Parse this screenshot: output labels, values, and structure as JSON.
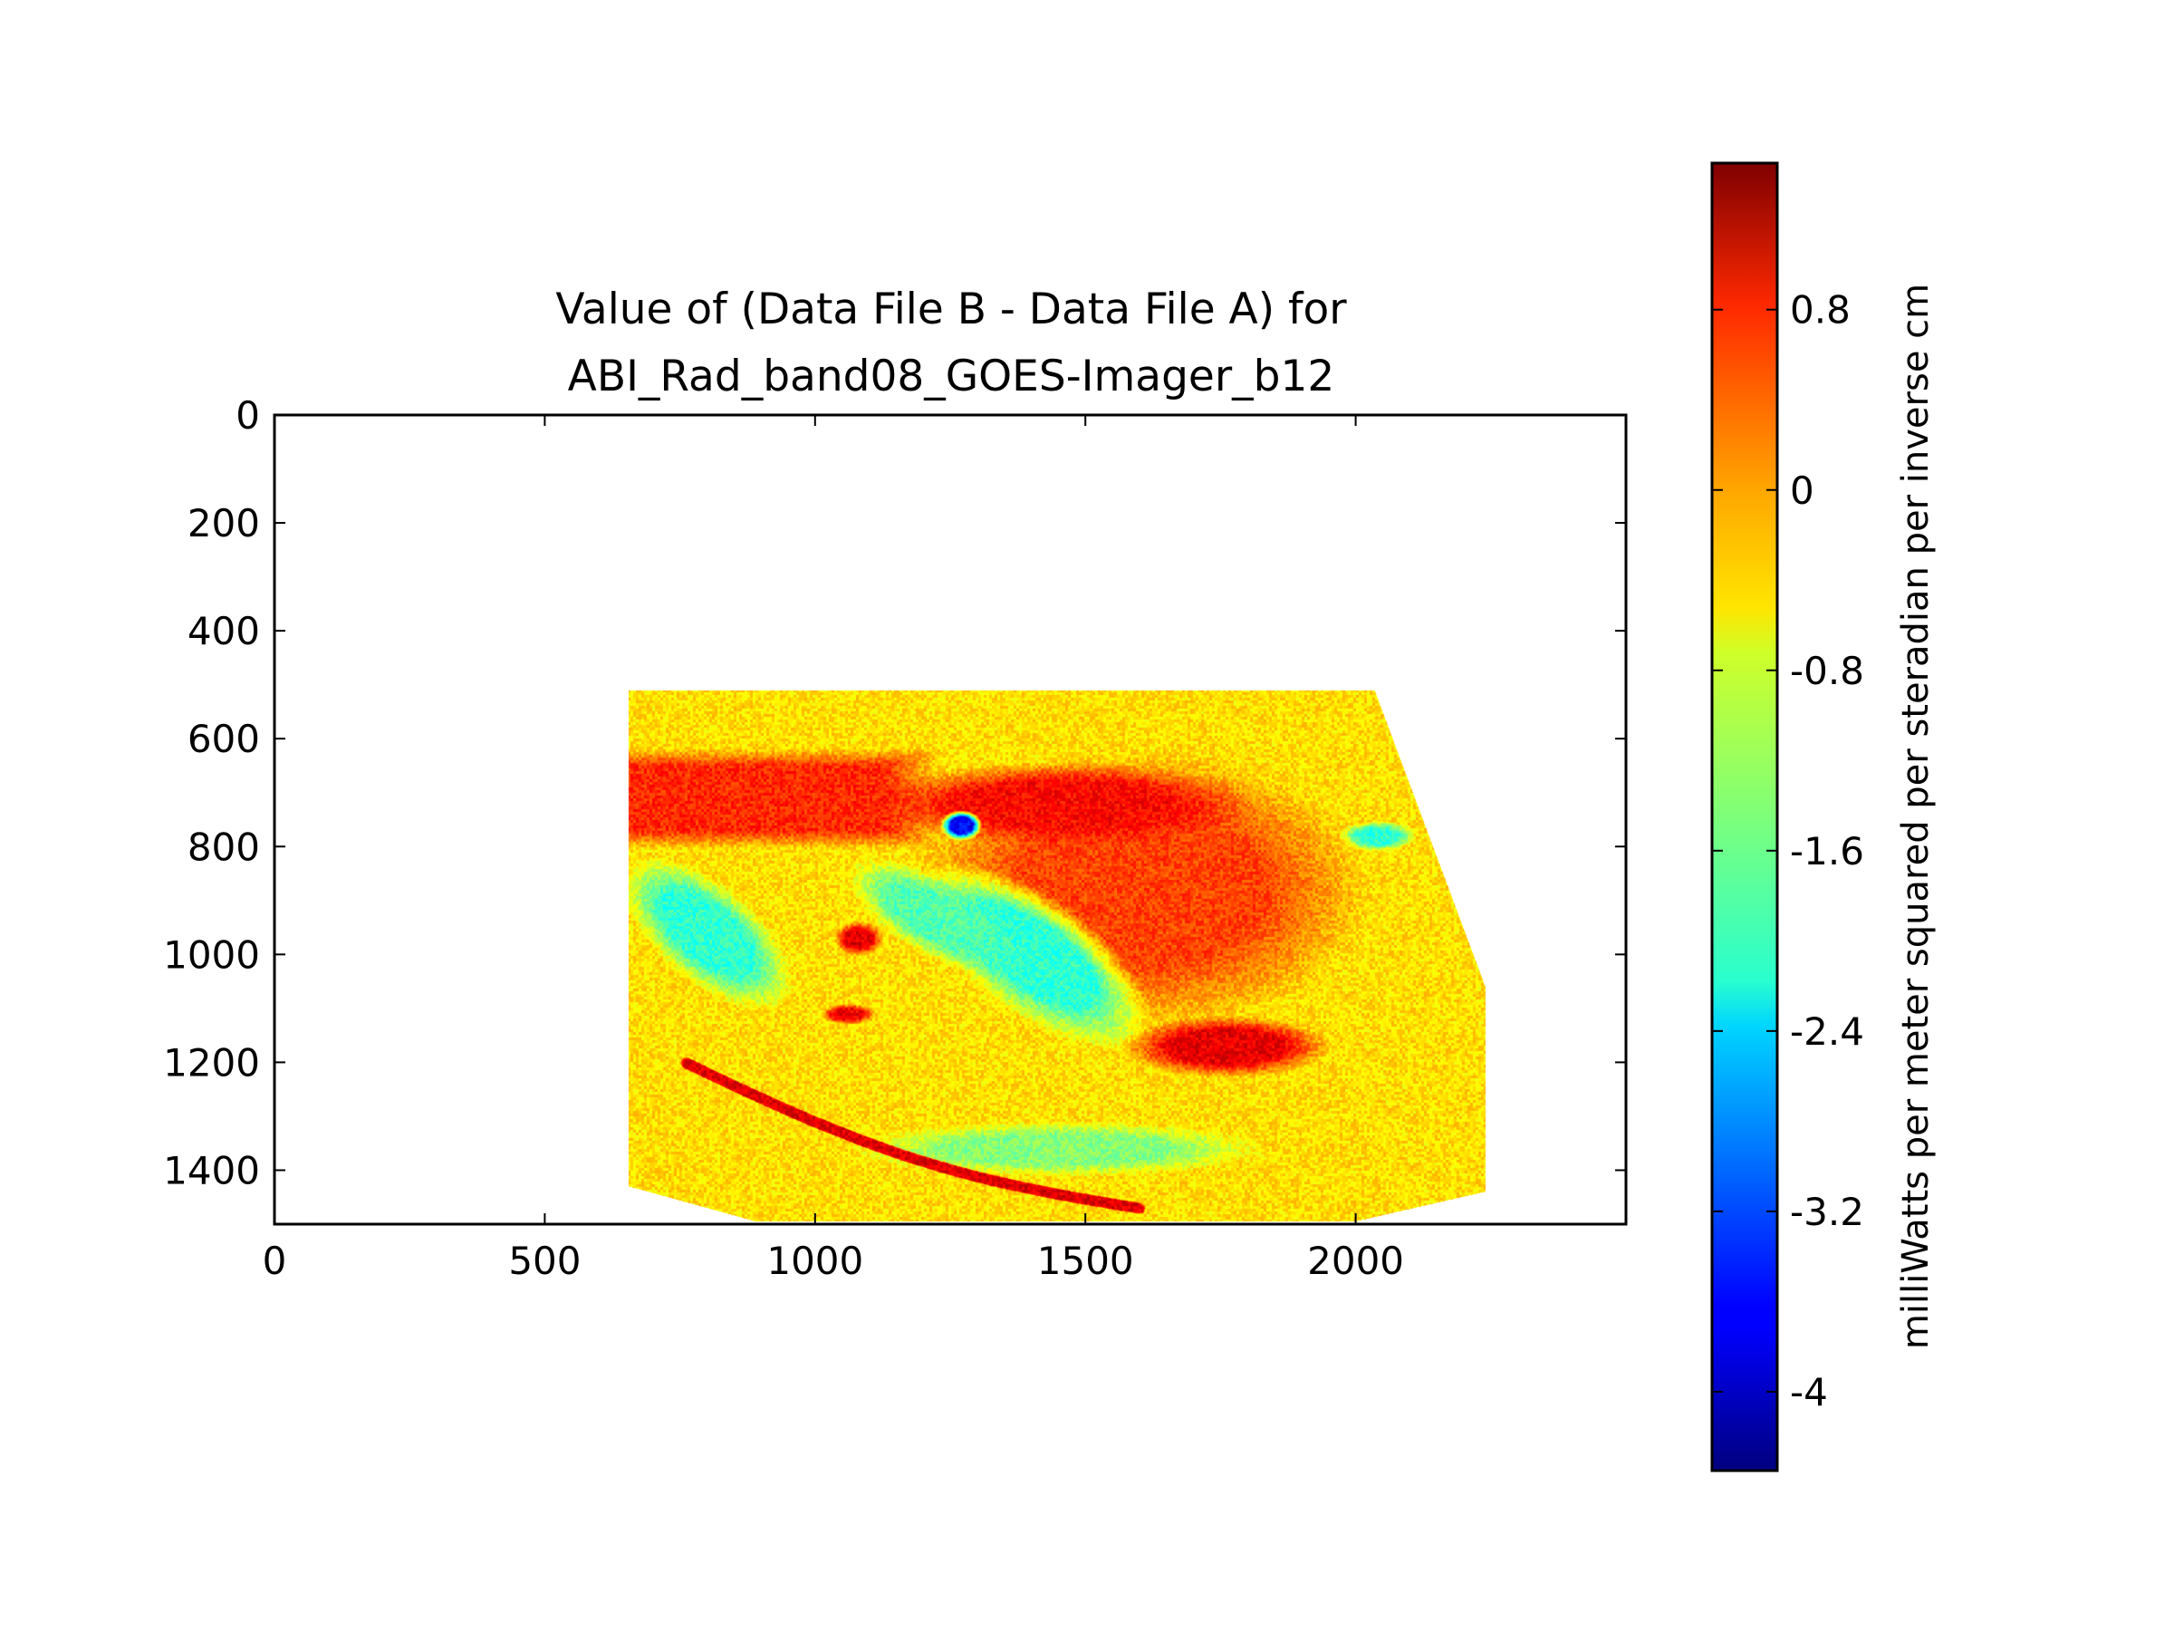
{
  "chart_data": {
    "type": "heatmap",
    "title_line1": "Value of (Data File B - Data File A) for",
    "title_line2": "ABI_Rad_band08_GOES-Imager_b12",
    "xlabel": "",
    "ylabel": "",
    "xlim": [
      0,
      2500
    ],
    "ylim": [
      1500,
      0
    ],
    "x_ticks": [
      0,
      500,
      1000,
      1500,
      2000
    ],
    "y_ticks": [
      0,
      200,
      400,
      600,
      800,
      1000,
      1200,
      1400
    ],
    "grid": false,
    "colormap": "jet",
    "colorbar": {
      "label": "milliWatts per meter squared per steradian per inverse cm",
      "range": [
        -4.35,
        1.45
      ],
      "ticks": [
        0.8,
        0,
        -0.8,
        -1.6,
        -2.4,
        -3.2,
        -4
      ],
      "tick_labels": [
        "0.8",
        "0",
        "-0.8",
        "-1.6",
        "-2.4",
        "-3.2",
        "-4"
      ]
    },
    "valid_region_polygon": [
      [
        655,
        510
      ],
      [
        2035,
        510
      ],
      [
        2240,
        1060
      ],
      [
        2240,
        1440
      ],
      [
        2000,
        1495
      ],
      [
        890,
        1495
      ],
      [
        655,
        1430
      ]
    ],
    "background_value": -0.55,
    "features": [
      {
        "shape": "band",
        "x": [
          655,
          1130
        ],
        "y": [
          650,
          770
        ],
        "value": 0.5
      },
      {
        "shape": "ellipse",
        "cx": 1600,
        "cy": 880,
        "rx": 330,
        "ry": 200,
        "value": 0.35
      },
      {
        "shape": "ellipse",
        "cx": 1450,
        "cy": 720,
        "rx": 280,
        "ry": 60,
        "value": 0.7
      },
      {
        "shape": "ellipse",
        "cx": 1760,
        "cy": 1170,
        "rx": 150,
        "ry": 45,
        "value": 0.85
      },
      {
        "shape": "ellipse",
        "cx": 1400,
        "cy": 1000,
        "rx": 200,
        "ry": 85,
        "rotation_deg": 35,
        "value": -1.9
      },
      {
        "shape": "ellipse",
        "cx": 1220,
        "cy": 930,
        "rx": 140,
        "ry": 55,
        "rotation_deg": 30,
        "value": -1.7
      },
      {
        "shape": "ellipse",
        "cx": 1270,
        "cy": 760,
        "rx": 30,
        "ry": 22,
        "value": -3.6
      },
      {
        "shape": "ellipse",
        "cx": 2040,
        "cy": 780,
        "rx": 55,
        "ry": 22,
        "value": -1.9
      },
      {
        "shape": "ellipse",
        "cx": 1450,
        "cy": 1360,
        "rx": 300,
        "ry": 40,
        "value": -1.4
      },
      {
        "shape": "ellipse",
        "cx": 800,
        "cy": 960,
        "rx": 150,
        "ry": 70,
        "rotation_deg": 40,
        "value": -1.9
      },
      {
        "shape": "arc",
        "from": [
          760,
          1200
        ],
        "to": [
          1600,
          1470
        ],
        "value": 0.9
      },
      {
        "shape": "ellipse",
        "cx": 1080,
        "cy": 970,
        "rx": 35,
        "ry": 25,
        "value": 0.9
      },
      {
        "shape": "ellipse",
        "cx": 1060,
        "cy": 1110,
        "rx": 40,
        "ry": 15,
        "value": 0.8
      }
    ]
  }
}
